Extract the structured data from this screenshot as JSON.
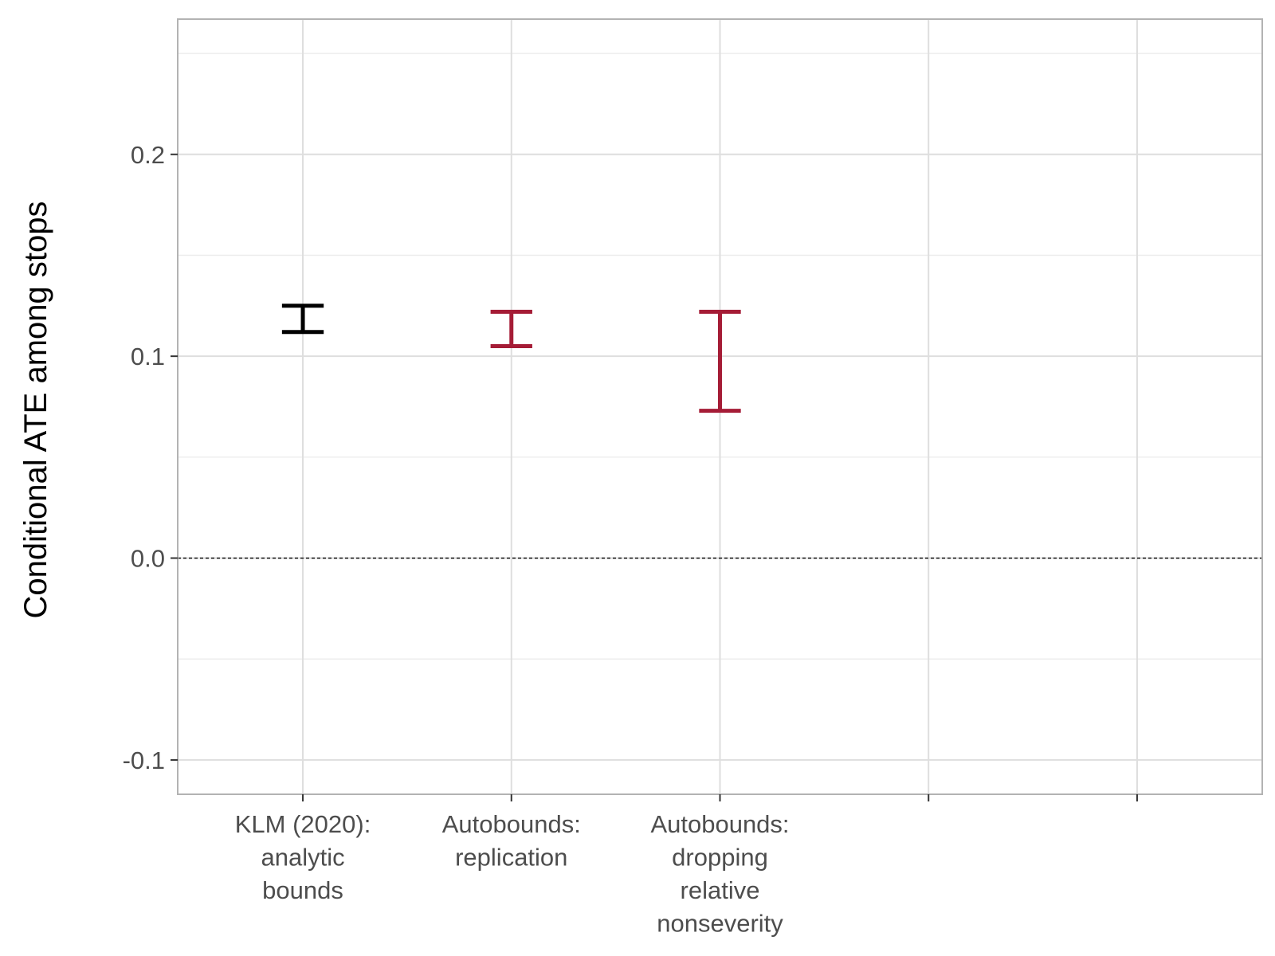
{
  "chart_data": {
    "type": "errorbar",
    "title": "",
    "xlabel": "",
    "ylabel": "Conditional ATE among stops",
    "ylim": [
      -0.117,
      0.267
    ],
    "yticks": [
      -0.1,
      0.0,
      0.1,
      0.2
    ],
    "ytick_labels": [
      "-0.1",
      "0.0",
      "0.1",
      "0.2"
    ],
    "x_slots": 5,
    "categories": [
      [
        "KLM (2020):",
        "analytic",
        "bounds"
      ],
      [
        "Autobounds:",
        "replication"
      ],
      [
        "Autobounds:",
        "dropping",
        "relative",
        "nonseverity"
      ],
      [],
      []
    ],
    "intervals": [
      {
        "category_index": 0,
        "lower": 0.112,
        "upper": 0.125,
        "color": "#000000"
      },
      {
        "category_index": 1,
        "lower": 0.105,
        "upper": 0.122,
        "color": "#a51c36"
      },
      {
        "category_index": 2,
        "lower": 0.073,
        "upper": 0.122,
        "color": "#a51c36"
      }
    ],
    "reference_line": {
      "y": 0.0,
      "style": "dashed",
      "color": "#000000"
    },
    "grid": true,
    "theme": {
      "panel_border": "#b3b3b3",
      "grid_major": "#dedede",
      "grid_minor": "#ececec"
    }
  }
}
